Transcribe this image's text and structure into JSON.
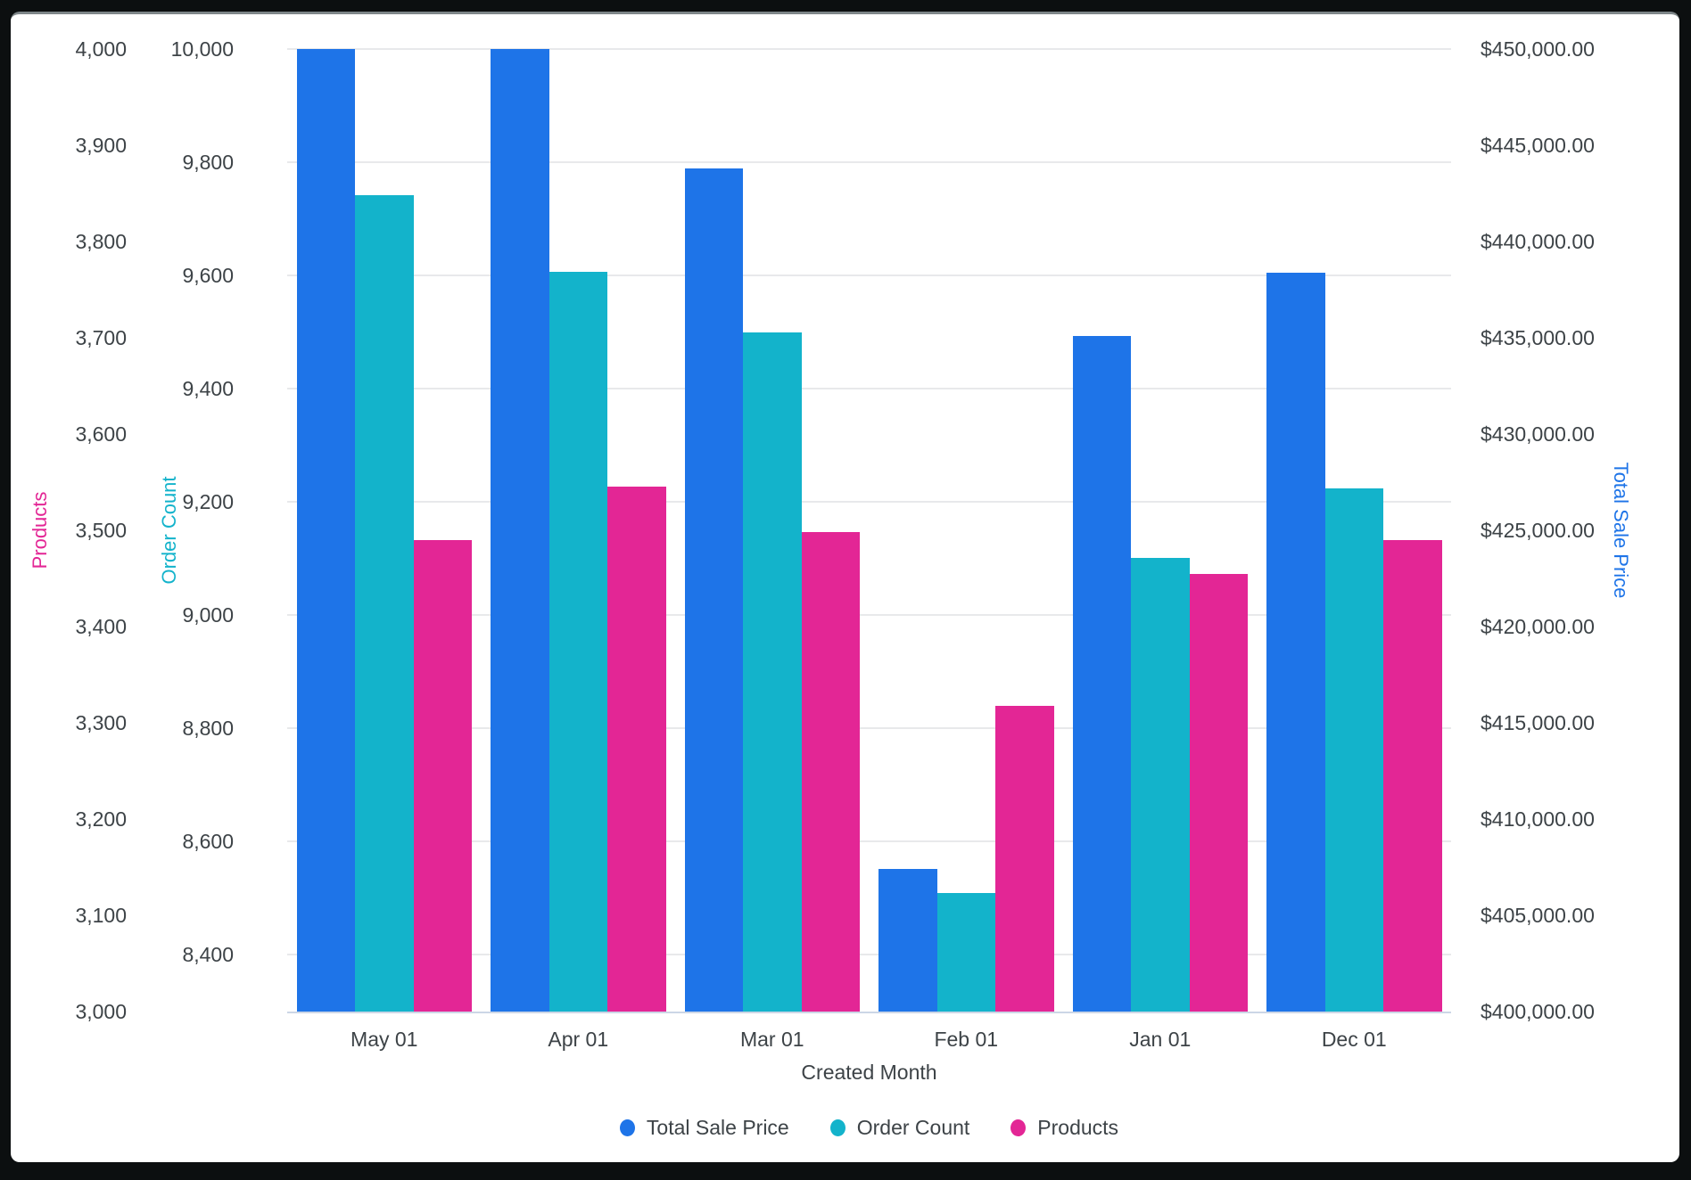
{
  "chart_data": {
    "type": "bar",
    "categories": [
      "May 01",
      "Apr 01",
      "Mar 01",
      "Feb 01",
      "Jan 01",
      "Dec 01"
    ],
    "xlabel": "Created Month",
    "legend_position": "bottom",
    "grid": true,
    "series": [
      {
        "name": "Total Sale Price",
        "axis": "sale",
        "color": "#1E74E8",
        "values": [
          450000,
          450000,
          443800,
          407400,
          435100,
          438400
        ]
      },
      {
        "name": "Order Count",
        "axis": "orders",
        "color": "#13B3CB",
        "values": [
          9742,
          9606,
          9500,
          8510,
          9101,
          9224
        ]
      },
      {
        "name": "Products",
        "axis": "products",
        "color": "#E32695",
        "values": [
          3490,
          3545,
          3498,
          3318,
          3455,
          3490
        ]
      }
    ],
    "axes": {
      "products": {
        "title": "Products",
        "min": 3000,
        "max": 4000,
        "tick_min": 3000,
        "tick_step": 100,
        "format": "number",
        "color": "#E32695",
        "tick_labels": [
          "3,000",
          "3,100",
          "3,200",
          "3,300",
          "3,400",
          "3,500",
          "3,600",
          "3,700",
          "3,800",
          "3,900",
          "4,000"
        ]
      },
      "orders": {
        "title": "Order Count",
        "min": 8300,
        "max": 10000,
        "tick_min": 8400,
        "tick_step": 200,
        "format": "number",
        "color": "#13B3CB",
        "gridlines": true,
        "tick_labels": [
          "8,400",
          "8,600",
          "8,800",
          "9,000",
          "9,200",
          "9,400",
          "9,600",
          "9,800",
          "10,000"
        ]
      },
      "sale": {
        "title": "Total Sale Price",
        "min": 400000,
        "max": 450000,
        "tick_min": 400000,
        "tick_step": 5000,
        "format": "currency",
        "color": "#1E74E8",
        "tick_labels": [
          "$400,000.00",
          "$405,000.00",
          "$410,000.00",
          "$415,000.00",
          "$420,000.00",
          "$425,000.00",
          "$430,000.00",
          "$435,000.00",
          "$440,000.00",
          "$445,000.00",
          "$450,000.00"
        ]
      }
    }
  }
}
